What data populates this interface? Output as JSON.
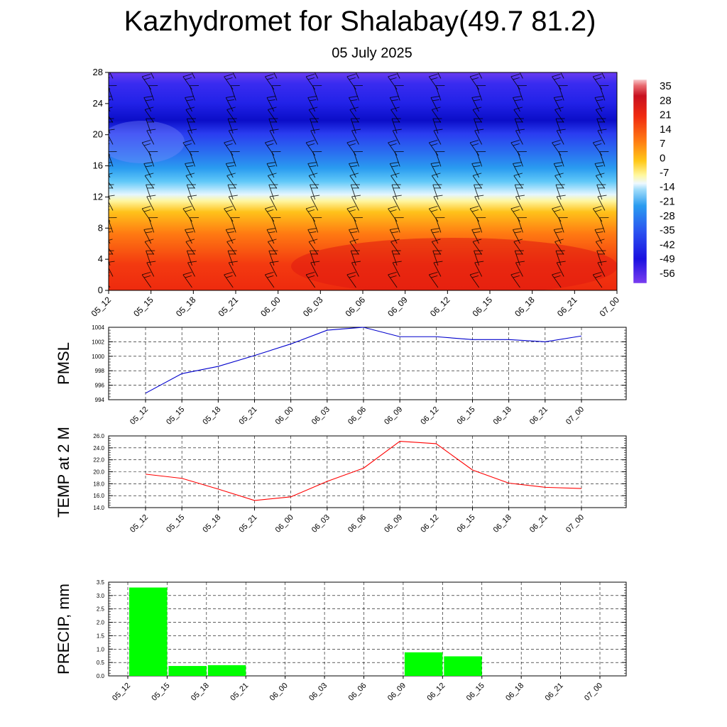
{
  "header": {
    "title": "Kazhydromet for Shalabay(49.7 81.2)",
    "date": "05 July 2025"
  },
  "time_labels": [
    "05_12",
    "05_15",
    "05_18",
    "05_21",
    "06_00",
    "06_03",
    "06_06",
    "06_09",
    "06_12",
    "06_15",
    "06_18",
    "06_21",
    "07_00"
  ],
  "colorbar": {
    "labels": [
      "35",
      "28",
      "21",
      "14",
      "7",
      "0",
      "-7",
      "-14",
      "-21",
      "-28",
      "-35",
      "-42",
      "-49",
      "-56"
    ]
  },
  "chart_data": [
    {
      "type": "heatmap",
      "title": "",
      "xlabel": "",
      "ylabel": "",
      "x": [
        "05_12",
        "05_15",
        "05_18",
        "05_21",
        "06_00",
        "06_03",
        "06_06",
        "06_09",
        "06_12",
        "06_15",
        "06_18",
        "06_21",
        "07_00"
      ],
      "yticks": [
        0,
        4,
        8,
        12,
        16,
        20,
        24,
        28
      ],
      "ylim": [
        0,
        28
      ],
      "colorbar_range": [
        -56,
        35
      ],
      "wind_barbs": true
    },
    {
      "type": "line",
      "ylabel": "PMSL",
      "x": [
        "05_12",
        "05_15",
        "05_18",
        "05_21",
        "06_00",
        "06_03",
        "06_06",
        "06_09",
        "06_12",
        "06_15",
        "06_18",
        "06_21",
        "07_00"
      ],
      "ylim": [
        994,
        1004
      ],
      "yticks": [
        "994",
        "996",
        "998",
        "1000",
        "1002",
        "1004"
      ],
      "series": [
        {
          "values": [
            994.9,
            997.6,
            998.6,
            1000.1,
            1001.7,
            1003.6,
            1004.0,
            1002.7,
            1002.7,
            1002.3,
            1002.3,
            1002.0,
            1002.8
          ]
        }
      ],
      "color": "#0000cc",
      "grid": true
    },
    {
      "type": "line",
      "ylabel": "TEMP at 2 M",
      "x": [
        "05_12",
        "05_15",
        "05_18",
        "05_21",
        "06_00",
        "06_03",
        "06_06",
        "06_09",
        "06_12",
        "06_15",
        "06_18",
        "06_21",
        "07_00"
      ],
      "ylim": [
        14,
        26
      ],
      "yticks": [
        "14.0",
        "16.0",
        "18.0",
        "20.0",
        "22.0",
        "24.0",
        "26.0"
      ],
      "series": [
        {
          "values": [
            19.6,
            18.9,
            17.1,
            15.2,
            15.8,
            18.4,
            20.6,
            25.1,
            24.7,
            20.3,
            18.1,
            17.4,
            17.2
          ]
        }
      ],
      "color": "#ff0000",
      "grid": true
    },
    {
      "type": "bar",
      "ylabel": "PRECIP, mm",
      "categories": [
        "05_15",
        "05_18",
        "05_21",
        "06_00",
        "06_03",
        "06_06",
        "06_09",
        "06_12",
        "06_15",
        "06_18",
        "06_21",
        "07_00"
      ],
      "x": [
        "05_12",
        "05_15",
        "05_18",
        "05_21",
        "06_00",
        "06_03",
        "06_06",
        "06_09",
        "06_12",
        "06_15",
        "06_18",
        "06_21",
        "07_00"
      ],
      "values": [
        3.3,
        0.37,
        0.4,
        0,
        0,
        0,
        0,
        0.88,
        0.73,
        0,
        0,
        0
      ],
      "ylim": [
        0,
        3.5
      ],
      "yticks": [
        "0.0",
        "0.5",
        "1.0",
        "1.5",
        "2.0",
        "2.5",
        "3.0",
        "3.5"
      ],
      "color": "#00ff00",
      "grid": true
    }
  ]
}
